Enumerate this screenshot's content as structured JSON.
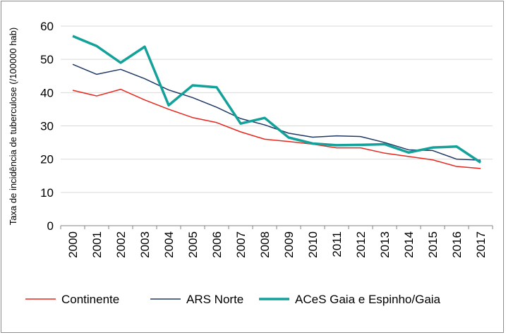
{
  "chart_data": {
    "type": "line",
    "title": "",
    "xlabel": "",
    "ylabel": "Taxa de incidência de tuberculose (/100000 hab)",
    "ylim": [
      0,
      60
    ],
    "yticks": [
      0,
      10,
      20,
      30,
      40,
      50,
      60
    ],
    "grid": true,
    "legend_position": "bottom",
    "categories": [
      "2000",
      "2001",
      "2002",
      "2003",
      "2004",
      "2005",
      "2006",
      "2007",
      "2008",
      "2009",
      "2010",
      "2011",
      "2012",
      "2013",
      "2014",
      "2015",
      "2016",
      "2017"
    ],
    "series": [
      {
        "name": "Continente",
        "color": "#e8261c",
        "values": [
          40.7,
          39.0,
          41.0,
          37.8,
          35.0,
          32.5,
          31.0,
          28.2,
          26.0,
          25.3,
          24.5,
          23.4,
          23.4,
          21.8,
          20.8,
          19.8,
          17.8,
          17.2
        ]
      },
      {
        "name": "ARS Norte",
        "color": "#1f3864",
        "values": [
          48.5,
          45.5,
          47.0,
          44.2,
          40.8,
          38.5,
          35.6,
          32.2,
          30.3,
          27.8,
          26.6,
          27.0,
          26.8,
          25.0,
          22.8,
          22.6,
          20.0,
          19.7
        ]
      },
      {
        "name": "ACeS Gaia e Espinho/Gaia",
        "color": "#13a19a",
        "values": [
          57.0,
          54.0,
          49.0,
          53.8,
          36.2,
          42.2,
          41.6,
          30.7,
          32.4,
          26.5,
          24.7,
          24.2,
          24.3,
          24.5,
          22.0,
          23.5,
          23.8,
          19.0
        ]
      }
    ]
  }
}
